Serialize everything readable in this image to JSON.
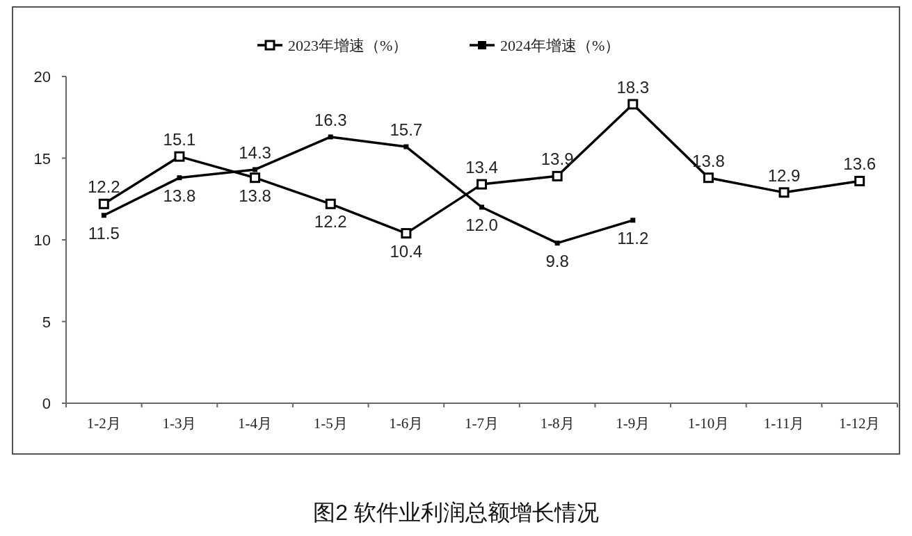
{
  "chart_data": {
    "type": "line",
    "title": "图2  软件业利润总额增长情况",
    "categories": [
      "1-2月",
      "1-3月",
      "1-4月",
      "1-5月",
      "1-6月",
      "1-7月",
      "1-8月",
      "1-9月",
      "1-10月",
      "1-11月",
      "1-12月"
    ],
    "series": [
      {
        "name": "2023年增速（%）",
        "color": "#000000",
        "marker": "square",
        "values": [
          12.2,
          15.1,
          13.8,
          12.2,
          10.4,
          13.4,
          13.9,
          18.3,
          13.8,
          12.9,
          13.6
        ],
        "value_labels": [
          "12.2",
          "15.1",
          "13.8",
          "12.2",
          "10.4",
          "13.4",
          "13.9",
          "18.3",
          "13.8",
          "12.9",
          "13.6"
        ]
      },
      {
        "name": "2024年增速（%）",
        "color": "#000000",
        "marker": "square",
        "values": [
          11.5,
          13.8,
          14.3,
          16.3,
          15.7,
          12.0,
          9.8,
          11.2,
          null,
          null,
          null
        ],
        "value_labels": [
          "11.5",
          "13.8",
          "14.3",
          "16.3",
          "15.7",
          "12.0",
          "9.8",
          "11.2",
          null,
          null,
          null
        ]
      }
    ],
    "ylim": [
      0,
      20
    ],
    "yticks": [
      0,
      5,
      10,
      15,
      20
    ],
    "grid": false,
    "legend": "top",
    "line_style": "solid"
  }
}
